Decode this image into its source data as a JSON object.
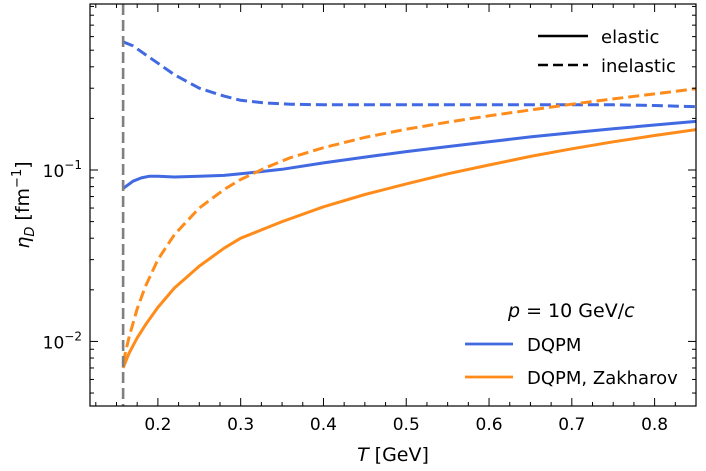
{
  "chart_data": {
    "type": "line",
    "title": "",
    "xlabel": {
      "var": "T",
      "unit": "[GeV]"
    },
    "ylabel": {
      "var": "η",
      "sub": "D",
      "unit_open": "[fm",
      "unit_sup": "−1",
      "unit_close": "]"
    },
    "xlim": [
      0.118,
      0.85
    ],
    "ylim": [
      0.0042,
      0.93
    ],
    "yscale": "log",
    "x_ticks": [
      {
        "value": 0.2,
        "label": "0.2"
      },
      {
        "value": 0.3,
        "label": "0.3"
      },
      {
        "value": 0.4,
        "label": "0.4"
      },
      {
        "value": 0.5,
        "label": "0.5"
      },
      {
        "value": 0.6,
        "label": "0.6"
      },
      {
        "value": 0.7,
        "label": "0.7"
      },
      {
        "value": 0.8,
        "label": "0.8"
      }
    ],
    "y_ticks": [
      {
        "value": 0.01,
        "base": "10",
        "exp": "−2"
      },
      {
        "value": 0.1,
        "base": "10",
        "exp": "−1"
      }
    ],
    "vline": {
      "x": 0.158,
      "color": "#808080",
      "style": "dashed"
    },
    "linestyle_legend": [
      {
        "label": "elastic",
        "style": "solid"
      },
      {
        "label": "inelastic",
        "style": "dashed"
      }
    ],
    "annotation": {
      "var": "p",
      "text": " = 10 GeV/",
      "tail": "c"
    },
    "series": [
      {
        "name": "DQPM",
        "variant": "elastic",
        "style": "solid",
        "color": "#4169e1",
        "x": [
          0.158,
          0.17,
          0.18,
          0.19,
          0.2,
          0.22,
          0.25,
          0.28,
          0.3,
          0.35,
          0.4,
          0.45,
          0.5,
          0.55,
          0.6,
          0.65,
          0.7,
          0.75,
          0.8,
          0.85
        ],
        "y": [
          0.078,
          0.086,
          0.09,
          0.092,
          0.092,
          0.091,
          0.092,
          0.093,
          0.095,
          0.101,
          0.11,
          0.119,
          0.128,
          0.137,
          0.146,
          0.156,
          0.165,
          0.174,
          0.183,
          0.192
        ]
      },
      {
        "name": "DQPM",
        "variant": "inelastic",
        "style": "dashed",
        "color": "#4169e1",
        "x": [
          0.158,
          0.17,
          0.18,
          0.2,
          0.22,
          0.25,
          0.28,
          0.3,
          0.33,
          0.36,
          0.4,
          0.45,
          0.5,
          0.55,
          0.6,
          0.65,
          0.7,
          0.75,
          0.8,
          0.85
        ],
        "y": [
          0.56,
          0.53,
          0.49,
          0.42,
          0.36,
          0.3,
          0.27,
          0.255,
          0.246,
          0.242,
          0.24,
          0.24,
          0.24,
          0.24,
          0.24,
          0.24,
          0.24,
          0.24,
          0.238,
          0.234
        ]
      },
      {
        "name": "DQPM, Zakharov",
        "variant": "elastic",
        "style": "solid",
        "color": "#ff8c1a",
        "x": [
          0.158,
          0.165,
          0.175,
          0.185,
          0.2,
          0.22,
          0.25,
          0.28,
          0.3,
          0.35,
          0.4,
          0.45,
          0.5,
          0.55,
          0.6,
          0.65,
          0.7,
          0.75,
          0.8,
          0.85
        ],
        "y": [
          0.007,
          0.0085,
          0.0105,
          0.0125,
          0.0158,
          0.0205,
          0.0275,
          0.035,
          0.04,
          0.05,
          0.061,
          0.072,
          0.083,
          0.095,
          0.107,
          0.12,
          0.133,
          0.146,
          0.159,
          0.172
        ]
      },
      {
        "name": "DQPM, Zakharov",
        "variant": "inelastic",
        "style": "dashed",
        "color": "#ff8c1a",
        "x": [
          0.158,
          0.165,
          0.175,
          0.185,
          0.2,
          0.22,
          0.25,
          0.28,
          0.3,
          0.33,
          0.36,
          0.4,
          0.45,
          0.5,
          0.55,
          0.6,
          0.65,
          0.7,
          0.75,
          0.8,
          0.85
        ],
        "y": [
          0.0075,
          0.0105,
          0.0155,
          0.021,
          0.03,
          0.042,
          0.06,
          0.077,
          0.088,
          0.103,
          0.118,
          0.135,
          0.155,
          0.173,
          0.19,
          0.207,
          0.224,
          0.242,
          0.26,
          0.278,
          0.298
        ]
      }
    ],
    "legend": [
      {
        "label": "DQPM",
        "color": "#4169e1"
      },
      {
        "label": "DQPM, Zakharov",
        "color": "#ff8c1a"
      }
    ]
  }
}
